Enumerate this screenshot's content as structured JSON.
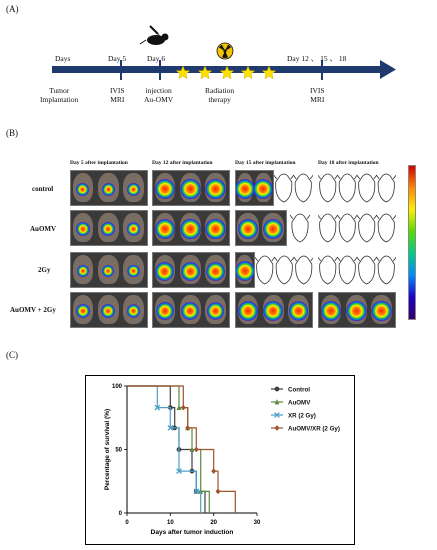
{
  "panel_a": {
    "label": "(A)",
    "timeline": [
      {
        "top": "Days",
        "bottom": ""
      },
      {
        "top": "Day 5",
        "bottom": "IVIS\nMRI"
      },
      {
        "top": "Day 6",
        "bottom": "injection\nAu-OMV"
      },
      {
        "top": "",
        "bottom": "Radiation\ntherapy"
      },
      {
        "top": "Day 12 、 15 、 18",
        "bottom": "IVIS\nMRI"
      }
    ],
    "first_bottom": "Tumor\nImplantation",
    "icons": [
      "mouse-syringe-icon",
      "radiation-icon",
      "star-icon"
    ],
    "colors": {
      "arrow": "#1f3a6e",
      "star": "#ffe100",
      "radiation": "#f2c300"
    }
  },
  "panel_b": {
    "label": "(B)",
    "columns": [
      "Day 5 after implantation",
      "Day 12 after implantation",
      "Day 15 after implantation",
      "Day 18 after implantation"
    ],
    "rows": [
      "control",
      "AuOMV",
      "2Gy",
      "AuOMV + 2Gy"
    ]
  },
  "panel_c": {
    "label": "(C)",
    "chart_data": {
      "type": "line",
      "xlabel": "Days after tumor induction",
      "ylabel": "Percentage of survival (%)",
      "xlim": [
        0,
        30
      ],
      "ylim": [
        0,
        100
      ],
      "xticks": [
        0,
        10,
        20,
        30
      ],
      "yticks": [
        0,
        50,
        100
      ],
      "legend_position": "right",
      "series": [
        {
          "name": "Control",
          "color": "#404040",
          "marker": "circle",
          "points": [
            [
              0,
              100
            ],
            [
              10,
              100
            ],
            [
              10,
              83
            ],
            [
              11,
              83
            ],
            [
              11,
              67
            ],
            [
              12,
              67
            ],
            [
              12,
              50
            ],
            [
              15,
              50
            ],
            [
              15,
              33
            ],
            [
              16,
              33
            ],
            [
              16,
              17
            ],
            [
              18,
              17
            ],
            [
              18,
              0
            ]
          ]
        },
        {
          "name": "AuOMV",
          "color": "#5a8a3c",
          "marker": "triangle",
          "points": [
            [
              0,
              100
            ],
            [
              12,
              100
            ],
            [
              12,
              83
            ],
            [
              14,
              83
            ],
            [
              14,
              67
            ],
            [
              15,
              67
            ],
            [
              15,
              50
            ],
            [
              17,
              50
            ],
            [
              17,
              17
            ],
            [
              19,
              17
            ],
            [
              19,
              0
            ]
          ]
        },
        {
          "name": "XR (2 Gy)",
          "color": "#4aa0c8",
          "marker": "cross",
          "points": [
            [
              0,
              100
            ],
            [
              7,
              100
            ],
            [
              7,
              83
            ],
            [
              10,
              83
            ],
            [
              10,
              67
            ],
            [
              12,
              67
            ],
            [
              12,
              33
            ],
            [
              16,
              33
            ],
            [
              16,
              17
            ],
            [
              17,
              17
            ],
            [
              17,
              0
            ]
          ]
        },
        {
          "name": "AuOMV/XR (2 Gy)",
          "color": "#a0522d",
          "marker": "diamond",
          "points": [
            [
              0,
              100
            ],
            [
              13,
              100
            ],
            [
              13,
              83
            ],
            [
              14,
              83
            ],
            [
              14,
              67
            ],
            [
              16,
              67
            ],
            [
              16,
              50
            ],
            [
              20,
              50
            ],
            [
              20,
              33
            ],
            [
              21,
              33
            ],
            [
              21,
              17
            ],
            [
              25,
              17
            ],
            [
              25,
              0
            ]
          ]
        }
      ]
    }
  }
}
